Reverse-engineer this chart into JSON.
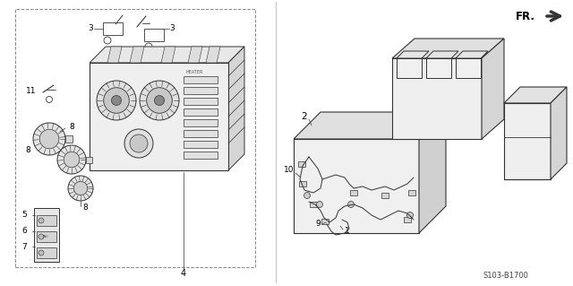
{
  "bg_color": "#ffffff",
  "diagram_code": "S103-B1700",
  "fr_label": "FR.",
  "line_color": "#333333",
  "light_gray": "#cccccc",
  "mid_gray": "#999999",
  "bg_gray": "#f0f0f0"
}
